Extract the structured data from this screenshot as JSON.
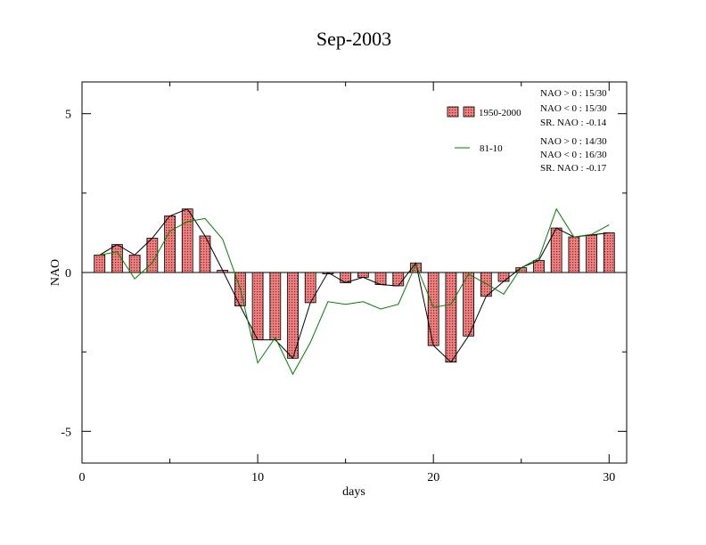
{
  "chart_data": {
    "type": "bar",
    "title": "Sep-2003",
    "xlabel": "days",
    "ylabel": "NAO",
    "xlim": [
      0,
      31
    ],
    "ylim": [
      -6,
      6
    ],
    "xticks": [
      {
        "value": 0,
        "label": "0"
      },
      {
        "value": 10,
        "label": "10"
      },
      {
        "value": 20,
        "label": "20"
      },
      {
        "value": 30,
        "label": "30"
      }
    ],
    "yticks": [
      {
        "value": 5,
        "label": "5"
      },
      {
        "value": 0,
        "label": "0"
      },
      {
        "value": -5,
        "label": "-5"
      }
    ],
    "x": [
      1,
      2,
      3,
      4,
      5,
      6,
      7,
      8,
      9,
      10,
      11,
      12,
      13,
      14,
      15,
      16,
      17,
      18,
      19,
      20,
      21,
      22,
      23,
      24,
      25,
      26,
      27,
      28,
      29,
      30
    ],
    "series": [
      {
        "name": "1950-2000",
        "kind": "bar+line",
        "fill": "#f08080",
        "line_color": "#000000",
        "values": [
          0.55,
          0.88,
          0.55,
          1.08,
          1.78,
          2.0,
          1.15,
          0.07,
          -1.05,
          -2.12,
          -2.12,
          -2.7,
          -0.95,
          0.0,
          -0.32,
          -0.15,
          -0.38,
          -0.42,
          0.3,
          -2.3,
          -2.82,
          -2.0,
          -0.75,
          -0.28,
          0.15,
          0.38,
          1.4,
          1.12,
          1.18,
          1.25
        ]
      },
      {
        "name": "81-10",
        "kind": "line",
        "line_color": "#008000",
        "values": [
          0.55,
          0.65,
          -0.2,
          0.3,
          1.3,
          1.6,
          1.7,
          1.05,
          -0.5,
          -2.85,
          -2.05,
          -3.2,
          -2.2,
          -0.92,
          -1.0,
          -0.92,
          -1.15,
          -1.0,
          0.25,
          -1.1,
          -1.0,
          -0.05,
          -0.35,
          -0.68,
          0.15,
          0.45,
          2.0,
          1.12,
          1.2,
          1.5
        ]
      }
    ],
    "legend": {
      "placement": "top-right",
      "stats_1": [
        "NAO > 0 : 15/30",
        "NAO < 0 : 15/30",
        "SR. NAO : -0.14"
      ],
      "stats_2": [
        "NAO > 0 : 14/30",
        "NAO < 0 : 16/30",
        "SR. NAO : -0.17"
      ]
    },
    "grid": false
  }
}
